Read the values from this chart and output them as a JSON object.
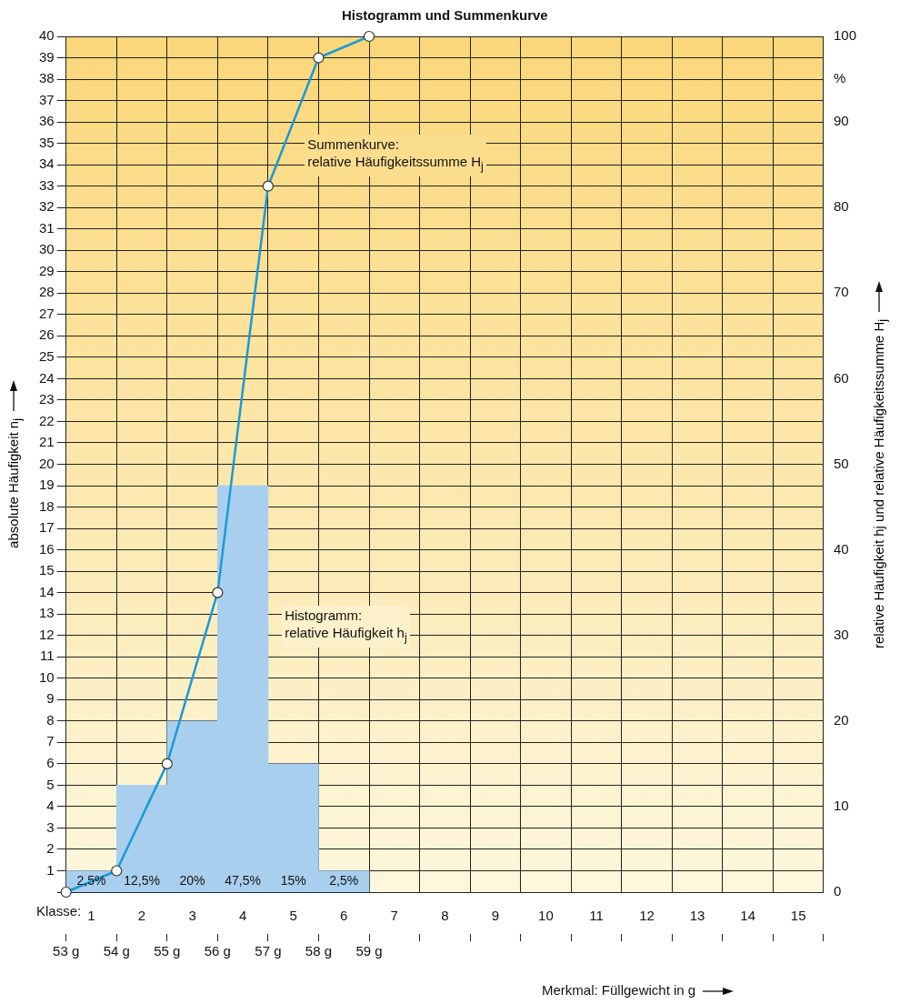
{
  "chart_data": {
    "type": "histogram",
    "title": "Histogramm und Summenkurve",
    "xlabel": "Merkmal: Füllgewicht in g",
    "x2label": "Klasse:",
    "ylabel": "absolute Häufigkeit n$_{j}$",
    "y2label": "relative Häufigkeit hj und relative Häufigkeitssumme H$_{j}$",
    "bins": [
      53,
      54,
      55,
      56,
      57,
      58,
      59
    ],
    "series": [
      {
        "type": "histogram",
        "axis": "y2",
        "color": "#a9cfee",
        "values": [
          2.5,
          12.5,
          20,
          47.5,
          15,
          2.5
        ],
        "value_labels": [
          "2,5%",
          "12,5%",
          "20%",
          "47,5%",
          "15%",
          "2,5%"
        ]
      },
      {
        "type": "line",
        "axis": "y2",
        "color": "#1b9ad6",
        "marker": "circle",
        "x": [
          53,
          54,
          55,
          56,
          57,
          58,
          59
        ],
        "values": [
          0,
          2.5,
          15,
          35,
          82.5,
          97.5,
          100
        ]
      }
    ],
    "xlim": [
      53,
      68
    ],
    "xticks": [
      {
        "value": 53,
        "label": "53 g"
      },
      {
        "value": 54,
        "label": "54 g"
      },
      {
        "value": 55,
        "label": "55 g"
      },
      {
        "value": 56,
        "label": "56 g"
      },
      {
        "value": 57,
        "label": "57 g"
      },
      {
        "value": 58,
        "label": "58 g"
      },
      {
        "value": 59,
        "label": "59 g"
      },
      {
        "value": 60,
        "label": null
      },
      {
        "value": 61,
        "label": null
      },
      {
        "value": 62,
        "label": null
      },
      {
        "value": 63,
        "label": null
      },
      {
        "value": 64,
        "label": null
      },
      {
        "value": 65,
        "label": null
      },
      {
        "value": 66,
        "label": null
      },
      {
        "value": 67,
        "label": null
      },
      {
        "value": 68,
        "label": null
      }
    ],
    "x2lim": [
      0.5,
      15.5
    ],
    "x2ticks": [
      1,
      2,
      3,
      4,
      5,
      6,
      7,
      8,
      9,
      10,
      11,
      12,
      13,
      14,
      15
    ],
    "ylim": [
      0,
      40
    ],
    "yticks": [
      {
        "value": 0,
        "label": null
      },
      1,
      2,
      3,
      4,
      5,
      6,
      7,
      8,
      9,
      10,
      11,
      12,
      13,
      14,
      15,
      16,
      17,
      18,
      19,
      20,
      21,
      22,
      23,
      24,
      25,
      26,
      27,
      28,
      29,
      30,
      31,
      32,
      33,
      34,
      35,
      36,
      37,
      38,
      39,
      40
    ],
    "y2lim": [
      0,
      100
    ],
    "y2ticks": [
      0,
      10,
      20,
      30,
      40,
      50,
      60,
      70,
      80,
      {
        "value": 95,
        "label": "%"
      },
      90,
      100
    ],
    "grid": true,
    "annotations": [
      "Summenkurve:\nrelative Häufigkeitssumme H$_{j}$",
      "Histogramm:\nrelative Häufigkeit h$_{j}$"
    ]
  }
}
